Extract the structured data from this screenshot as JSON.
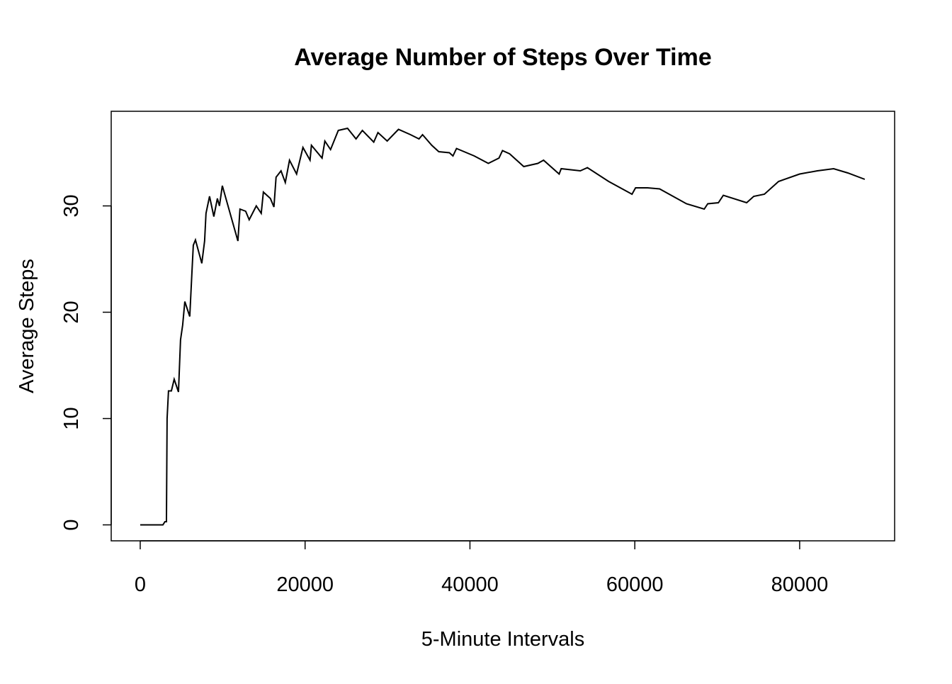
{
  "chart_data": {
    "type": "line",
    "title": "Average Number of Steps Over Time",
    "x_label": "5-Minute Intervals",
    "y_label": "Average Steps",
    "color": "#000000",
    "xlim": [
      -3520,
      91520
    ],
    "ylim": [
      -1.5,
      38.9
    ],
    "xticks": [
      0,
      20000,
      40000,
      60000,
      80000
    ],
    "yticks": [
      0,
      10,
      20,
      30
    ],
    "x": [
      0,
      2750,
      3000,
      3180,
      3260,
      3430,
      3780,
      4120,
      4640,
      4890,
      5150,
      5410,
      6010,
      6270,
      6440,
      6700,
      7470,
      7810,
      7980,
      8410,
      8930,
      9360,
      9610,
      9960,
      11850,
      12100,
      12790,
      13220,
      14080,
      14680,
      14940,
      15790,
      16220,
      16480,
      17080,
      17600,
      18110,
      18970,
      19740,
      20600,
      20770,
      22060,
      22400,
      23090,
      24030,
      25150,
      26180,
      26950,
      28330,
      28840,
      29960,
      31330,
      32790,
      33820,
      34250,
      35370,
      36220,
      37510,
      37940,
      38370,
      40520,
      42230,
      43520,
      43950,
      44810,
      46530,
      48240,
      48930,
      50820,
      51070,
      53390,
      54250,
      56830,
      59660,
      60090,
      61550,
      63010,
      66270,
      68420,
      68850,
      70140,
      70740,
      73570,
      74430,
      75720,
      77440,
      80000,
      82150,
      84120,
      85840,
      87900
    ],
    "values": [
      0,
      0,
      0.3,
      0.3,
      10,
      12.6,
      12.6,
      13.7,
      12.5,
      17.4,
      18.8,
      21,
      19.6,
      23.7,
      26.3,
      26.8,
      24.6,
      26.7,
      29.3,
      30.9,
      29,
      30.7,
      30,
      31.9,
      26.7,
      29.7,
      29.5,
      28.7,
      30,
      29.3,
      31.3,
      30.7,
      29.9,
      32.7,
      33.3,
      32.2,
      34.3,
      33,
      35.5,
      34.3,
      35.7,
      34.5,
      36.1,
      35.3,
      37.1,
      37.3,
      36.3,
      37.1,
      36,
      36.9,
      36.1,
      37.2,
      36.7,
      36.3,
      36.7,
      35.7,
      35.1,
      35,
      34.7,
      35.4,
      34.7,
      34,
      34.5,
      35.2,
      34.9,
      33.7,
      34,
      34.3,
      33,
      33.5,
      33.3,
      33.6,
      32.3,
      31.1,
      31.7,
      31.7,
      31.6,
      30.2,
      29.7,
      30.2,
      30.3,
      31,
      30.3,
      30.9,
      31.1,
      32.3,
      33,
      33.3,
      33.5,
      33.1,
      32.5
    ]
  }
}
